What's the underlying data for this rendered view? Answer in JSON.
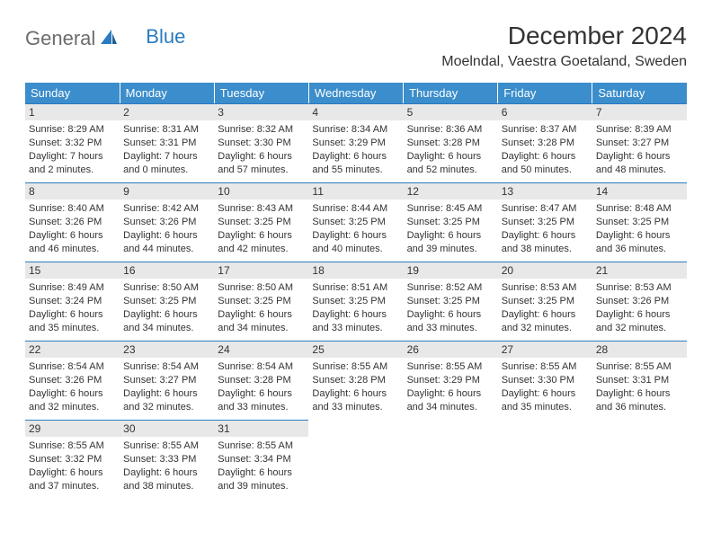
{
  "logo": {
    "part1": "General",
    "part2": "Blue"
  },
  "title": "December 2024",
  "location": "Moelndal, Vaestra Goetaland, Sweden",
  "colors": {
    "header_bg": "#3b8dcb",
    "header_text": "#ffffff",
    "day_band_bg": "#e8e8e8",
    "day_band_border": "#2a7bbf",
    "text": "#333333",
    "logo_gray": "#6c6c6c",
    "logo_blue": "#2a7bbf"
  },
  "weekdays": [
    "Sunday",
    "Monday",
    "Tuesday",
    "Wednesday",
    "Thursday",
    "Friday",
    "Saturday"
  ],
  "weeks": [
    [
      {
        "day": "1",
        "sunrise": "Sunrise: 8:29 AM",
        "sunset": "Sunset: 3:32 PM",
        "daylight": "Daylight: 7 hours and 2 minutes."
      },
      {
        "day": "2",
        "sunrise": "Sunrise: 8:31 AM",
        "sunset": "Sunset: 3:31 PM",
        "daylight": "Daylight: 7 hours and 0 minutes."
      },
      {
        "day": "3",
        "sunrise": "Sunrise: 8:32 AM",
        "sunset": "Sunset: 3:30 PM",
        "daylight": "Daylight: 6 hours and 57 minutes."
      },
      {
        "day": "4",
        "sunrise": "Sunrise: 8:34 AM",
        "sunset": "Sunset: 3:29 PM",
        "daylight": "Daylight: 6 hours and 55 minutes."
      },
      {
        "day": "5",
        "sunrise": "Sunrise: 8:36 AM",
        "sunset": "Sunset: 3:28 PM",
        "daylight": "Daylight: 6 hours and 52 minutes."
      },
      {
        "day": "6",
        "sunrise": "Sunrise: 8:37 AM",
        "sunset": "Sunset: 3:28 PM",
        "daylight": "Daylight: 6 hours and 50 minutes."
      },
      {
        "day": "7",
        "sunrise": "Sunrise: 8:39 AM",
        "sunset": "Sunset: 3:27 PM",
        "daylight": "Daylight: 6 hours and 48 minutes."
      }
    ],
    [
      {
        "day": "8",
        "sunrise": "Sunrise: 8:40 AM",
        "sunset": "Sunset: 3:26 PM",
        "daylight": "Daylight: 6 hours and 46 minutes."
      },
      {
        "day": "9",
        "sunrise": "Sunrise: 8:42 AM",
        "sunset": "Sunset: 3:26 PM",
        "daylight": "Daylight: 6 hours and 44 minutes."
      },
      {
        "day": "10",
        "sunrise": "Sunrise: 8:43 AM",
        "sunset": "Sunset: 3:25 PM",
        "daylight": "Daylight: 6 hours and 42 minutes."
      },
      {
        "day": "11",
        "sunrise": "Sunrise: 8:44 AM",
        "sunset": "Sunset: 3:25 PM",
        "daylight": "Daylight: 6 hours and 40 minutes."
      },
      {
        "day": "12",
        "sunrise": "Sunrise: 8:45 AM",
        "sunset": "Sunset: 3:25 PM",
        "daylight": "Daylight: 6 hours and 39 minutes."
      },
      {
        "day": "13",
        "sunrise": "Sunrise: 8:47 AM",
        "sunset": "Sunset: 3:25 PM",
        "daylight": "Daylight: 6 hours and 38 minutes."
      },
      {
        "day": "14",
        "sunrise": "Sunrise: 8:48 AM",
        "sunset": "Sunset: 3:25 PM",
        "daylight": "Daylight: 6 hours and 36 minutes."
      }
    ],
    [
      {
        "day": "15",
        "sunrise": "Sunrise: 8:49 AM",
        "sunset": "Sunset: 3:24 PM",
        "daylight": "Daylight: 6 hours and 35 minutes."
      },
      {
        "day": "16",
        "sunrise": "Sunrise: 8:50 AM",
        "sunset": "Sunset: 3:25 PM",
        "daylight": "Daylight: 6 hours and 34 minutes."
      },
      {
        "day": "17",
        "sunrise": "Sunrise: 8:50 AM",
        "sunset": "Sunset: 3:25 PM",
        "daylight": "Daylight: 6 hours and 34 minutes."
      },
      {
        "day": "18",
        "sunrise": "Sunrise: 8:51 AM",
        "sunset": "Sunset: 3:25 PM",
        "daylight": "Daylight: 6 hours and 33 minutes."
      },
      {
        "day": "19",
        "sunrise": "Sunrise: 8:52 AM",
        "sunset": "Sunset: 3:25 PM",
        "daylight": "Daylight: 6 hours and 33 minutes."
      },
      {
        "day": "20",
        "sunrise": "Sunrise: 8:53 AM",
        "sunset": "Sunset: 3:25 PM",
        "daylight": "Daylight: 6 hours and 32 minutes."
      },
      {
        "day": "21",
        "sunrise": "Sunrise: 8:53 AM",
        "sunset": "Sunset: 3:26 PM",
        "daylight": "Daylight: 6 hours and 32 minutes."
      }
    ],
    [
      {
        "day": "22",
        "sunrise": "Sunrise: 8:54 AM",
        "sunset": "Sunset: 3:26 PM",
        "daylight": "Daylight: 6 hours and 32 minutes."
      },
      {
        "day": "23",
        "sunrise": "Sunrise: 8:54 AM",
        "sunset": "Sunset: 3:27 PM",
        "daylight": "Daylight: 6 hours and 32 minutes."
      },
      {
        "day": "24",
        "sunrise": "Sunrise: 8:54 AM",
        "sunset": "Sunset: 3:28 PM",
        "daylight": "Daylight: 6 hours and 33 minutes."
      },
      {
        "day": "25",
        "sunrise": "Sunrise: 8:55 AM",
        "sunset": "Sunset: 3:28 PM",
        "daylight": "Daylight: 6 hours and 33 minutes."
      },
      {
        "day": "26",
        "sunrise": "Sunrise: 8:55 AM",
        "sunset": "Sunset: 3:29 PM",
        "daylight": "Daylight: 6 hours and 34 minutes."
      },
      {
        "day": "27",
        "sunrise": "Sunrise: 8:55 AM",
        "sunset": "Sunset: 3:30 PM",
        "daylight": "Daylight: 6 hours and 35 minutes."
      },
      {
        "day": "28",
        "sunrise": "Sunrise: 8:55 AM",
        "sunset": "Sunset: 3:31 PM",
        "daylight": "Daylight: 6 hours and 36 minutes."
      }
    ],
    [
      {
        "day": "29",
        "sunrise": "Sunrise: 8:55 AM",
        "sunset": "Sunset: 3:32 PM",
        "daylight": "Daylight: 6 hours and 37 minutes."
      },
      {
        "day": "30",
        "sunrise": "Sunrise: 8:55 AM",
        "sunset": "Sunset: 3:33 PM",
        "daylight": "Daylight: 6 hours and 38 minutes."
      },
      {
        "day": "31",
        "sunrise": "Sunrise: 8:55 AM",
        "sunset": "Sunset: 3:34 PM",
        "daylight": "Daylight: 6 hours and 39 minutes."
      },
      null,
      null,
      null,
      null
    ]
  ]
}
